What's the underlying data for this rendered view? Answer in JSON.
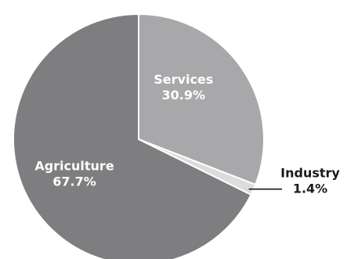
{
  "chart_data": {
    "type": "pie",
    "title": "",
    "slices": [
      {
        "label": "Services",
        "value": 30.9,
        "value_label": "30.9%",
        "color": "#a8a8aa",
        "label_color": "#ffffff",
        "label_placement": "inside"
      },
      {
        "label": "Industry",
        "value": 1.4,
        "value_label": "1.4%",
        "color": "#dcdcde",
        "label_color": "#1a1a1a",
        "label_placement": "outside"
      },
      {
        "label": "Agriculture",
        "value": 67.7,
        "value_label": "67.7%",
        "color": "#7e7e81",
        "label_color": "#ffffff",
        "label_placement": "inside"
      }
    ],
    "start_angle_deg": 0,
    "direction": "clockwise",
    "slice_border_color": "#ffffff",
    "legend": "none"
  }
}
